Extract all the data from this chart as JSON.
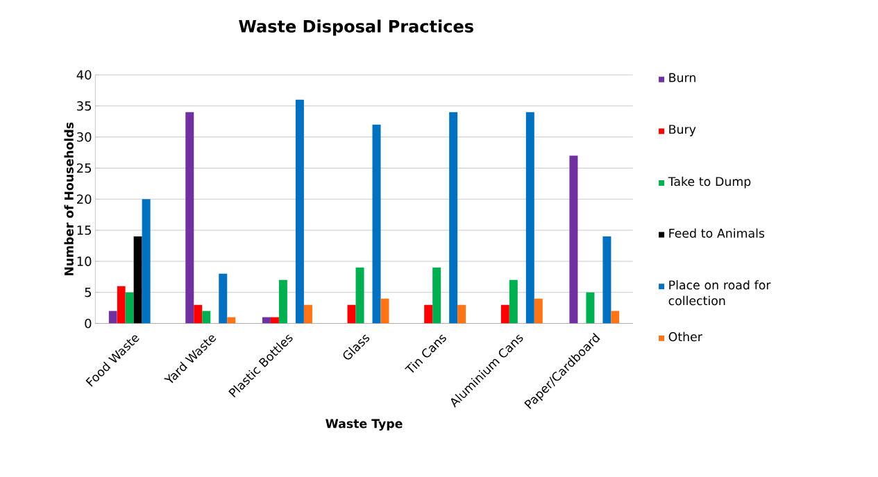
{
  "chart_data": {
    "type": "bar",
    "title": "Waste Disposal Practices",
    "xlabel": "Waste Type",
    "ylabel": "Number of Households",
    "categories": [
      "Food Waste",
      "Yard Waste",
      "Plastic Bottles",
      "Glass",
      "Tin Cans",
      "Aluminium Cans",
      "Paper/Cardboard"
    ],
    "series": [
      {
        "name": "Burn",
        "color": "#7030a0",
        "values": [
          2,
          34,
          1,
          0,
          0,
          0,
          27
        ]
      },
      {
        "name": "Bury",
        "color": "#ff0000",
        "values": [
          6,
          3,
          1,
          3,
          3,
          3,
          0
        ]
      },
      {
        "name": "Take to Dump",
        "color": "#00b050",
        "values": [
          5,
          2,
          7,
          9,
          9,
          7,
          5
        ]
      },
      {
        "name": "Feed to Animals",
        "color": "#000000",
        "values": [
          14,
          0,
          0,
          0,
          0,
          0,
          0
        ]
      },
      {
        "name": "Place on road for collection",
        "color": "#0070c0",
        "values": [
          20,
          8,
          36,
          32,
          34,
          34,
          14
        ]
      },
      {
        "name": "Other",
        "color": "#ff7417",
        "values": [
          0,
          1,
          3,
          4,
          3,
          4,
          2
        ]
      }
    ],
    "ylim": [
      0,
      40
    ],
    "yticks": [
      0,
      5,
      10,
      15,
      20,
      25,
      30,
      35,
      40
    ],
    "grid": "y",
    "legend": "right"
  }
}
